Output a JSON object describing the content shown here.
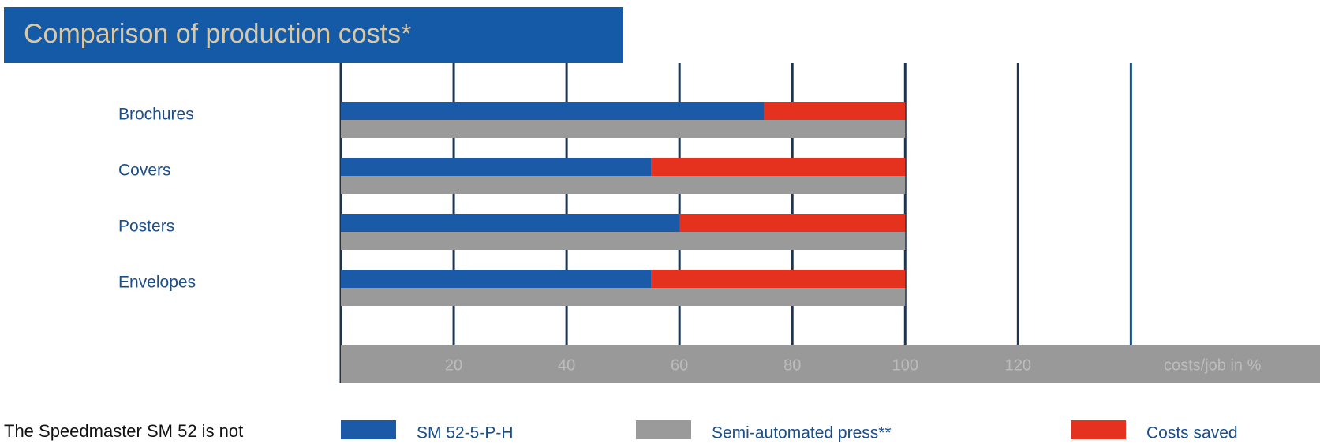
{
  "chart_data": {
    "type": "stacked-barh",
    "title": "Comparison of production costs*",
    "x_label": "costs/job in %",
    "footnote": "The Speedmaster SM 52 is not",
    "categories": [
      "Brochures",
      "Covers",
      "Posters",
      "Envelopes"
    ],
    "series": [
      {
        "name": "SM 52-5-P-H",
        "color": "#1b5aa6",
        "stack": "a",
        "values": [
          75,
          55,
          60,
          55
        ]
      },
      {
        "name": "Semi-automated press**",
        "color": "#9a9a9a",
        "stack": "b",
        "values": [
          100,
          100,
          100,
          100
        ]
      },
      {
        "name": "Costs saved",
        "color": "#e5321f",
        "stack": "a",
        "values": [
          25,
          45,
          40,
          45
        ]
      }
    ],
    "xlim": [
      0,
      173.5
    ],
    "xticks": [
      20,
      40,
      60,
      80,
      100,
      120
    ],
    "xgrid": [
      0,
      20,
      40,
      60,
      80,
      100,
      120,
      140
    ]
  }
}
